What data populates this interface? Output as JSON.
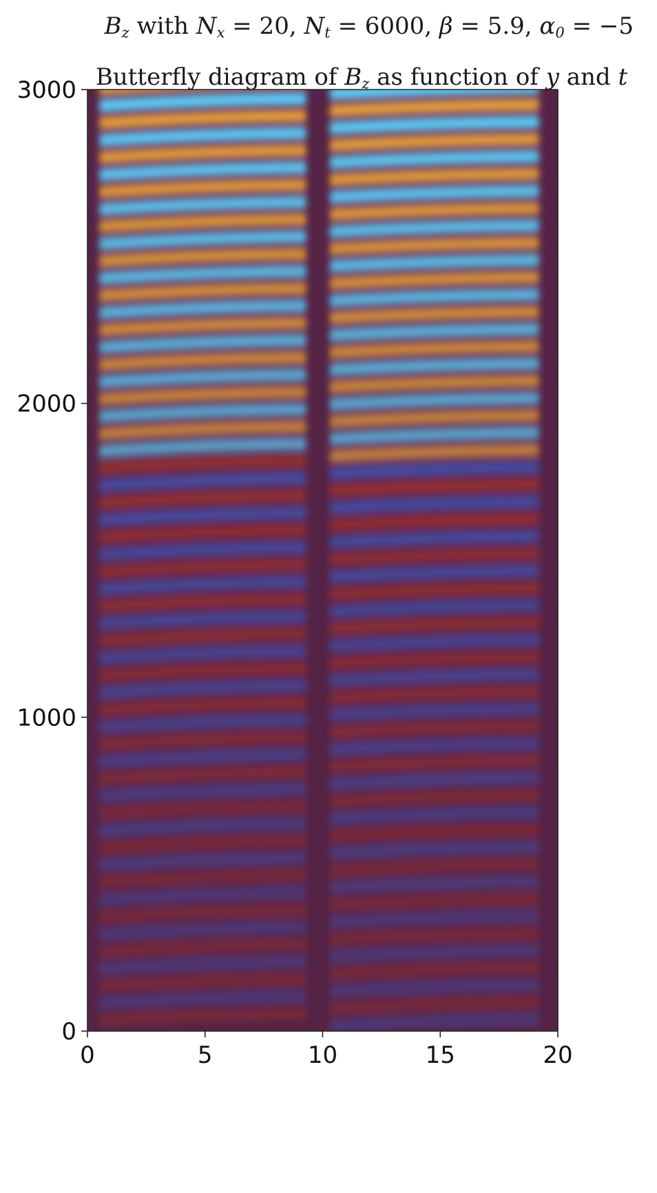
{
  "chart_data": {
    "type": "heatmap",
    "title": {
      "var": "B",
      "var_sub": "z",
      "with": " with ",
      "nx_var": "N",
      "nx_sub": "x",
      "nx_val": " = 20, ",
      "nt_var": "N",
      "nt_sub": "t",
      "nt_val": " = 6000, ",
      "beta": "β",
      "beta_val": " = 5.9, ",
      "alpha": "α",
      "alpha_sub": "0",
      "alpha_val": " = −5"
    },
    "subtitle": {
      "prefix": "Butterfly diagram of ",
      "var": "B",
      "var_sub": "z",
      "middle": " as function of ",
      "y": "y",
      "and": " and ",
      "t": "t"
    },
    "xlabel": "",
    "ylabel": "",
    "xlim": [
      0,
      20
    ],
    "ylim": [
      0,
      3000
    ],
    "x_ticks": [
      "0",
      "5",
      "10",
      "15",
      "20"
    ],
    "y_ticks": [
      "0",
      "1000",
      "2000",
      "3000"
    ],
    "colormap": [
      "#4a2361",
      "#3f5ac4",
      "#5cc6f2",
      "#e09a3d",
      "#a8322a"
    ],
    "background_color": "#552345",
    "description_values": {
      "lobe_centers_y": [
        5.5,
        14.0
      ],
      "equator_gap_y": 10,
      "period_t": 110,
      "max_amplitude_t": 3000,
      "min_amplitude_t": 0
    }
  }
}
